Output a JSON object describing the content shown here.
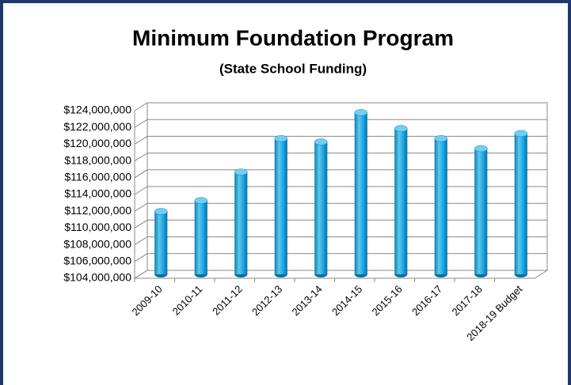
{
  "chart_data": {
    "type": "bar",
    "title": "Minimum Foundation Program",
    "subtitle": "(State School Funding)",
    "categories": [
      "2009-10",
      "2010-11",
      "2011-12",
      "2012-13",
      "2013-14",
      "2014-15",
      "2015-16",
      "2016-17",
      "2017-18",
      "2018-19 Budget"
    ],
    "values": [
      111500000,
      112800000,
      116200000,
      120200000,
      119800000,
      123300000,
      121400000,
      120200000,
      119000000,
      120800000
    ],
    "color": "#1aa3de",
    "ylim": [
      104000000,
      124000000
    ],
    "yticks": [
      {
        "value": 104000000,
        "label": "$104,000,000"
      },
      {
        "value": 106000000,
        "label": "$106,000,000"
      },
      {
        "value": 108000000,
        "label": "$108,000,000"
      },
      {
        "value": 110000000,
        "label": "$110,000,000"
      },
      {
        "value": 112000000,
        "label": "$112,000,000"
      },
      {
        "value": 114000000,
        "label": "$114,000,000"
      },
      {
        "value": 116000000,
        "label": "$116,000,000"
      },
      {
        "value": 118000000,
        "label": "$118,000,000"
      },
      {
        "value": 120000000,
        "label": "$120,000,000"
      },
      {
        "value": 122000000,
        "label": "$122,000,000"
      },
      {
        "value": 124000000,
        "label": "$124,000,000"
      }
    ],
    "grid": true
  }
}
